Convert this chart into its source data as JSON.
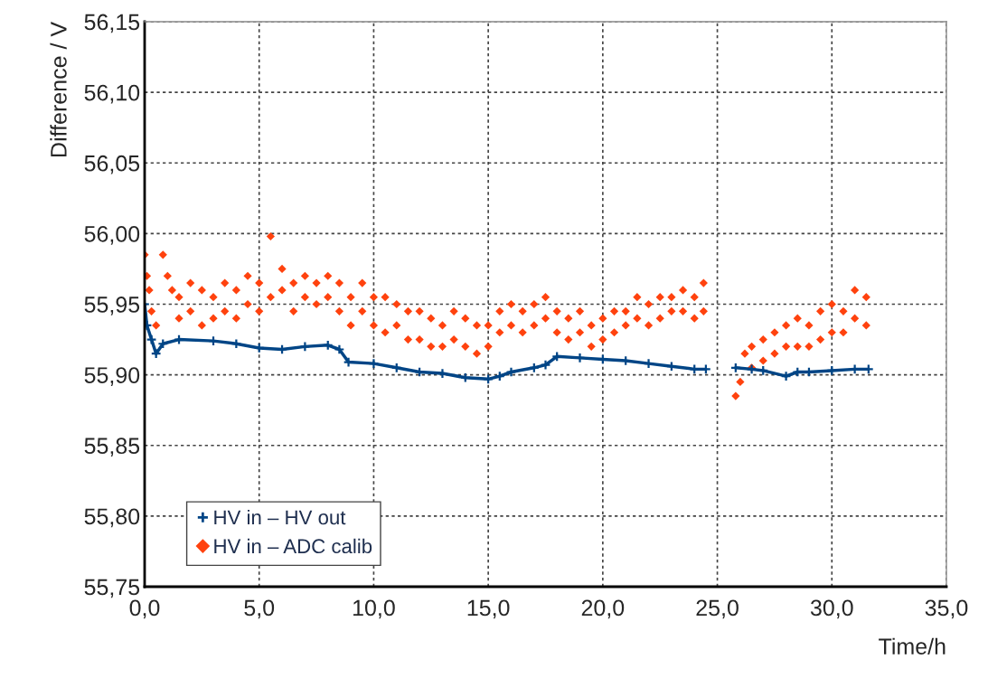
{
  "chart_data": {
    "type": "scatter",
    "xlabel": "Time/h",
    "ylabel": "Difference / V",
    "xlim": [
      0,
      35
    ],
    "ylim": [
      55.75,
      56.15
    ],
    "xticks": [
      {
        "value": 0,
        "label": "0,0"
      },
      {
        "value": 5,
        "label": "5,0"
      },
      {
        "value": 10,
        "label": "10,0"
      },
      {
        "value": 15,
        "label": "15,0"
      },
      {
        "value": 20,
        "label": "20,0"
      },
      {
        "value": 25,
        "label": "25,0"
      },
      {
        "value": 30,
        "label": "30,0"
      },
      {
        "value": 35,
        "label": "35,0"
      }
    ],
    "yticks": [
      {
        "value": 55.75,
        "label": "55,75"
      },
      {
        "value": 55.8,
        "label": "55,80"
      },
      {
        "value": 55.85,
        "label": "55,85"
      },
      {
        "value": 55.9,
        "label": "55,90"
      },
      {
        "value": 55.95,
        "label": "55,95"
      },
      {
        "value": 56.0,
        "label": "56,00"
      },
      {
        "value": 56.05,
        "label": "56,05"
      },
      {
        "value": 56.1,
        "label": "56,10"
      },
      {
        "value": 56.15,
        "label": "56,15"
      }
    ],
    "grid": true,
    "legend": "bottom left",
    "series": [
      {
        "name": "HV in – HV out",
        "type": "line",
        "marker": "cross",
        "color": "#004586",
        "x": [
          0.0,
          0.1,
          0.3,
          0.5,
          0.8,
          1.5,
          3,
          4,
          5,
          6,
          7,
          8,
          8.5,
          8.9,
          10,
          11,
          12,
          13,
          14,
          15,
          15.5,
          16,
          17,
          17.5,
          18,
          19,
          20,
          21,
          22,
          23,
          24,
          24.5,
          25.2,
          25.8,
          26.5,
          27,
          28,
          28.5,
          29,
          30,
          31,
          31.6
        ],
        "values": [
          55.95,
          55.935,
          55.925,
          55.915,
          55.922,
          55.925,
          55.924,
          55.922,
          55.919,
          55.918,
          55.92,
          55.921,
          55.918,
          55.909,
          55.908,
          55.905,
          55.902,
          55.901,
          55.898,
          55.897,
          55.899,
          55.902,
          55.905,
          55.907,
          55.913,
          55.912,
          55.911,
          55.91,
          55.908,
          55.906,
          55.904,
          55.904,
          null,
          55.905,
          55.904,
          55.903,
          55.899,
          55.902,
          55.902,
          55.903,
          55.904,
          55.904
        ]
      },
      {
        "name": "HV in – ADC calib",
        "marker": "diamond",
        "color": "#ff420e",
        "x": [
          0.0,
          0.1,
          0.2,
          0.3,
          0.5,
          0.8,
          1.0,
          1.2,
          1.5,
          1.5,
          2.0,
          2.0,
          2.5,
          2.5,
          3.0,
          3.0,
          3.5,
          3.5,
          4.0,
          4.0,
          4.5,
          4.5,
          5.0,
          5.0,
          5.5,
          5.5,
          6.0,
          6.0,
          6.5,
          6.5,
          7.0,
          7.0,
          7.5,
          7.5,
          8.0,
          8.0,
          8.5,
          8.5,
          9.0,
          9.0,
          9.5,
          9.5,
          10.0,
          10.0,
          10.5,
          10.5,
          11.0,
          11.0,
          11.5,
          11.5,
          12.0,
          12.0,
          12.5,
          12.5,
          13.0,
          13.0,
          13.5,
          13.5,
          14.0,
          14.0,
          14.5,
          14.5,
          15.0,
          15.0,
          15.5,
          15.5,
          16.0,
          16.0,
          16.5,
          16.5,
          17.0,
          17.0,
          17.5,
          17.5,
          18.0,
          18.0,
          18.5,
          18.5,
          19.0,
          19.0,
          19.5,
          19.5,
          20.0,
          20.0,
          20.5,
          20.5,
          21.0,
          21.0,
          21.5,
          21.5,
          22.0,
          22.0,
          22.5,
          22.5,
          23.0,
          23.0,
          23.5,
          23.5,
          24.0,
          24.0,
          24.4,
          24.4,
          25.8,
          26.0,
          26.2,
          26.5,
          26.5,
          27.0,
          27.0,
          27.5,
          27.5,
          28.0,
          28.0,
          28.5,
          28.5,
          29.0,
          29.0,
          29.5,
          29.5,
          30.0,
          30.0,
          30.5,
          30.5,
          31.0,
          31.0,
          31.5,
          31.5
        ],
        "values": [
          55.985,
          55.97,
          55.96,
          55.945,
          55.935,
          55.985,
          55.97,
          55.96,
          55.955,
          55.94,
          55.965,
          55.945,
          55.96,
          55.935,
          55.955,
          55.94,
          55.965,
          55.945,
          55.96,
          55.94,
          55.97,
          55.95,
          55.965,
          55.945,
          55.998,
          55.955,
          55.975,
          55.96,
          55.965,
          55.945,
          55.97,
          55.955,
          55.965,
          55.95,
          55.97,
          55.955,
          55.965,
          55.945,
          55.955,
          55.935,
          55.965,
          55.945,
          55.955,
          55.935,
          55.955,
          55.93,
          55.95,
          55.935,
          55.945,
          55.925,
          55.945,
          55.925,
          55.94,
          55.92,
          55.935,
          55.92,
          55.945,
          55.925,
          55.94,
          55.92,
          55.935,
          55.915,
          55.935,
          55.92,
          55.945,
          55.93,
          55.95,
          55.935,
          55.945,
          55.93,
          55.95,
          55.935,
          55.955,
          55.94,
          55.945,
          55.93,
          55.94,
          55.925,
          55.945,
          55.93,
          55.935,
          55.92,
          55.94,
          55.925,
          55.945,
          55.93,
          55.945,
          55.935,
          55.955,
          55.94,
          55.95,
          55.935,
          55.955,
          55.94,
          55.955,
          55.945,
          55.96,
          55.945,
          55.955,
          55.94,
          55.965,
          55.945,
          55.885,
          55.895,
          55.915,
          55.92,
          55.905,
          55.925,
          55.91,
          55.93,
          55.915,
          55.935,
          55.92,
          55.94,
          55.92,
          55.935,
          55.92,
          55.945,
          55.925,
          55.95,
          55.93,
          55.945,
          55.93,
          55.96,
          55.94,
          55.955,
          55.935
        ]
      }
    ]
  }
}
